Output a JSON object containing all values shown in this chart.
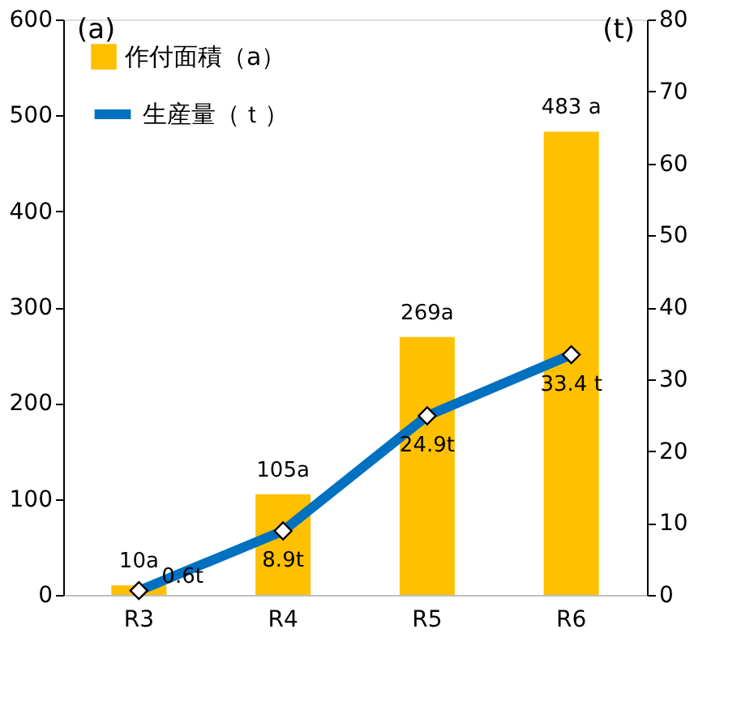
{
  "chart_data": {
    "type": "bar",
    "categories": [
      "R3",
      "R4",
      "R5",
      "R6"
    ],
    "ylabel": "(a)",
    "y2label": "(t)",
    "ylim": [
      0,
      600
    ],
    "yticks": [
      0,
      100,
      200,
      300,
      400,
      500,
      600
    ],
    "y2lim": [
      0,
      80
    ],
    "y2ticks": [
      0,
      10,
      20,
      30,
      40,
      50,
      60,
      70,
      80
    ],
    "legend": "top left",
    "grid": false,
    "series": [
      {
        "name": "作付面積（a）",
        "color": "#ffc000",
        "values": [
          10,
          105,
          269,
          483
        ],
        "value_labels": [
          "10a",
          "105a",
          "269a",
          "483 a"
        ]
      },
      {
        "name": "生産量（ｔ）",
        "type": "line",
        "axis": "y2",
        "color": "#0070c0",
        "marker": "diamond",
        "line_style": "solid",
        "values": [
          0.6,
          8.9,
          24.9,
          33.4
        ],
        "value_labels": [
          "0.6t",
          "8.9t",
          "24.9t",
          "33.4 t"
        ]
      }
    ]
  }
}
